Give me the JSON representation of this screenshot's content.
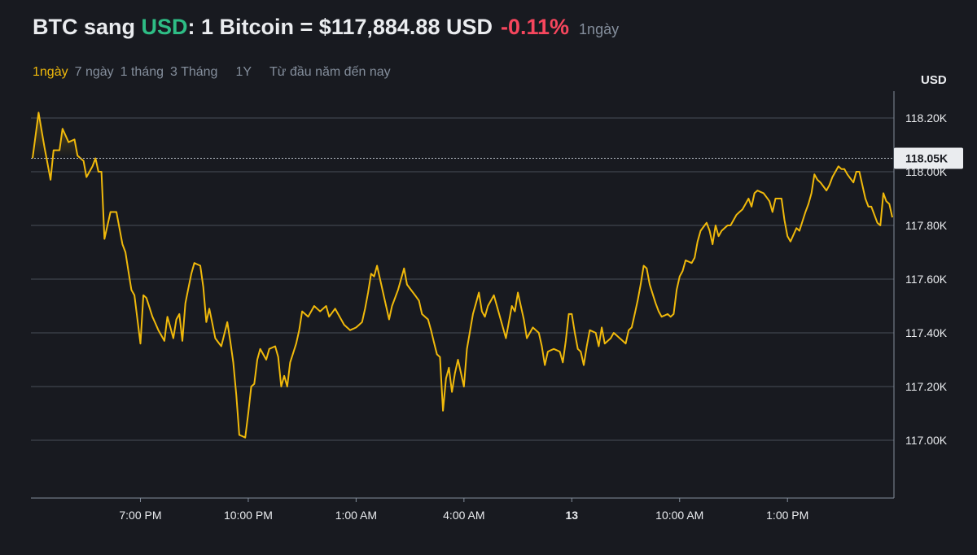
{
  "header": {
    "base": "BTC sang ",
    "quote": "USD",
    "rest": ": 1 Bitcoin = $117,884.88 USD",
    "change": "-0.11%",
    "period": "1ngày"
  },
  "tabs": [
    {
      "label": "1ngày",
      "active": true
    },
    {
      "label": "7 ngày",
      "active": false
    },
    {
      "label": "1 tháng",
      "active": false
    },
    {
      "label": "3 Tháng",
      "active": false
    },
    {
      "label": "1Y",
      "active": false
    },
    {
      "label": "Từ đầu năm đến nay",
      "active": false
    }
  ],
  "colors": {
    "background": "#181a20",
    "line": "#f0b90b",
    "up": "#2ebd85",
    "down": "#f6465d",
    "grid": "#474d57",
    "muted": "#848e9c"
  },
  "chart_data": {
    "type": "line",
    "currency_label": "USD",
    "current_price_label": "118.05K",
    "current_price": 118050,
    "ylim": [
      116800,
      118300
    ],
    "y_ticks": [
      {
        "value": 118200,
        "label": "118.20K"
      },
      {
        "value": 118000,
        "label": "118.00K"
      },
      {
        "value": 117800,
        "label": "117.80K"
      },
      {
        "value": 117600,
        "label": "117.60K"
      },
      {
        "value": 117400,
        "label": "117.40K"
      },
      {
        "value": 117200,
        "label": "117.20K"
      },
      {
        "value": 117000,
        "label": "117.00K"
      }
    ],
    "x_ticks": [
      {
        "index": 36,
        "label": "7:00 PM",
        "bold": false
      },
      {
        "index": 72,
        "label": "10:00 PM",
        "bold": false
      },
      {
        "index": 108,
        "label": "1:00 AM",
        "bold": false
      },
      {
        "index": 144,
        "label": "4:00 AM",
        "bold": false
      },
      {
        "index": 180,
        "label": "13",
        "bold": true
      },
      {
        "index": 216,
        "label": "10:00 AM",
        "bold": false
      },
      {
        "index": 252,
        "label": "1:00 PM",
        "bold": false
      }
    ],
    "n_points": 288,
    "anchors": [
      [
        0,
        118050
      ],
      [
        2,
        118220
      ],
      [
        4,
        118090
      ],
      [
        6,
        117970
      ],
      [
        7,
        118080
      ],
      [
        9,
        118080
      ],
      [
        10,
        118160
      ],
      [
        12,
        118110
      ],
      [
        14,
        118120
      ],
      [
        15,
        118060
      ],
      [
        17,
        118040
      ],
      [
        18,
        117980
      ],
      [
        20,
        118020
      ],
      [
        21,
        118050
      ],
      [
        22,
        118000
      ],
      [
        23,
        118000
      ],
      [
        24,
        117750
      ],
      [
        26,
        117850
      ],
      [
        28,
        117850
      ],
      [
        30,
        117730
      ],
      [
        31,
        117700
      ],
      [
        33,
        117560
      ],
      [
        34,
        117540
      ],
      [
        36,
        117360
      ],
      [
        37,
        117540
      ],
      [
        38,
        117530
      ],
      [
        40,
        117460
      ],
      [
        42,
        117410
      ],
      [
        44,
        117370
      ],
      [
        45,
        117460
      ],
      [
        47,
        117380
      ],
      [
        48,
        117450
      ],
      [
        49,
        117470
      ],
      [
        50,
        117370
      ],
      [
        51,
        117510
      ],
      [
        53,
        117620
      ],
      [
        54,
        117660
      ],
      [
        56,
        117650
      ],
      [
        57,
        117570
      ],
      [
        58,
        117440
      ],
      [
        59,
        117490
      ],
      [
        61,
        117380
      ],
      [
        63,
        117350
      ],
      [
        65,
        117440
      ],
      [
        66,
        117370
      ],
      [
        67,
        117290
      ],
      [
        68,
        117170
      ],
      [
        69,
        117020
      ],
      [
        71,
        117010
      ],
      [
        72,
        117100
      ],
      [
        73,
        117200
      ],
      [
        74,
        117210
      ],
      [
        75,
        117300
      ],
      [
        76,
        117340
      ],
      [
        78,
        117300
      ],
      [
        79,
        117340
      ],
      [
        81,
        117350
      ],
      [
        82,
        117310
      ],
      [
        83,
        117200
      ],
      [
        84,
        117240
      ],
      [
        85,
        117200
      ],
      [
        86,
        117290
      ],
      [
        88,
        117360
      ],
      [
        89,
        117410
      ],
      [
        90,
        117480
      ],
      [
        92,
        117460
      ],
      [
        94,
        117500
      ],
      [
        96,
        117480
      ],
      [
        98,
        117500
      ],
      [
        99,
        117460
      ],
      [
        101,
        117490
      ],
      [
        103,
        117450
      ],
      [
        104,
        117430
      ],
      [
        106,
        117410
      ],
      [
        108,
        117420
      ],
      [
        110,
        117440
      ],
      [
        111,
        117490
      ],
      [
        112,
        117550
      ],
      [
        113,
        117620
      ],
      [
        114,
        117610
      ],
      [
        115,
        117650
      ],
      [
        116,
        117600
      ],
      [
        118,
        117500
      ],
      [
        119,
        117450
      ],
      [
        120,
        117500
      ],
      [
        122,
        117560
      ],
      [
        124,
        117640
      ],
      [
        125,
        117580
      ],
      [
        127,
        117550
      ],
      [
        129,
        117520
      ],
      [
        130,
        117470
      ],
      [
        132,
        117450
      ],
      [
        133,
        117410
      ],
      [
        135,
        117320
      ],
      [
        136,
        117310
      ],
      [
        137,
        117110
      ],
      [
        138,
        117230
      ],
      [
        139,
        117270
      ],
      [
        140,
        117180
      ],
      [
        141,
        117250
      ],
      [
        142,
        117300
      ],
      [
        144,
        117200
      ],
      [
        145,
        117340
      ],
      [
        147,
        117470
      ],
      [
        149,
        117550
      ],
      [
        150,
        117480
      ],
      [
        151,
        117460
      ],
      [
        152,
        117500
      ],
      [
        154,
        117540
      ],
      [
        156,
        117460
      ],
      [
        158,
        117380
      ],
      [
        160,
        117500
      ],
      [
        161,
        117480
      ],
      [
        162,
        117550
      ],
      [
        164,
        117450
      ],
      [
        165,
        117380
      ],
      [
        167,
        117420
      ],
      [
        169,
        117400
      ],
      [
        170,
        117350
      ],
      [
        171,
        117280
      ],
      [
        172,
        117330
      ],
      [
        174,
        117340
      ],
      [
        176,
        117330
      ],
      [
        177,
        117290
      ],
      [
        178,
        117370
      ],
      [
        179,
        117470
      ],
      [
        180,
        117470
      ],
      [
        181,
        117400
      ],
      [
        182,
        117340
      ],
      [
        183,
        117330
      ],
      [
        184,
        117280
      ],
      [
        185,
        117350
      ],
      [
        186,
        117410
      ],
      [
        188,
        117400
      ],
      [
        189,
        117350
      ],
      [
        190,
        117420
      ],
      [
        191,
        117360
      ],
      [
        193,
        117380
      ],
      [
        194,
        117400
      ],
      [
        196,
        117380
      ],
      [
        198,
        117360
      ],
      [
        199,
        117410
      ],
      [
        200,
        117420
      ],
      [
        202,
        117520
      ],
      [
        203,
        117580
      ],
      [
        204,
        117650
      ],
      [
        205,
        117640
      ],
      [
        206,
        117580
      ],
      [
        208,
        117510
      ],
      [
        209,
        117480
      ],
      [
        210,
        117460
      ],
      [
        212,
        117470
      ],
      [
        213,
        117460
      ],
      [
        214,
        117470
      ],
      [
        215,
        117560
      ],
      [
        216,
        117610
      ],
      [
        217,
        117630
      ],
      [
        218,
        117670
      ],
      [
        220,
        117660
      ],
      [
        221,
        117680
      ],
      [
        222,
        117740
      ],
      [
        223,
        117780
      ],
      [
        225,
        117810
      ],
      [
        226,
        117780
      ],
      [
        227,
        117730
      ],
      [
        228,
        117800
      ],
      [
        229,
        117760
      ],
      [
        230,
        117780
      ],
      [
        232,
        117800
      ],
      [
        233,
        117800
      ],
      [
        235,
        117840
      ],
      [
        236,
        117850
      ],
      [
        237,
        117860
      ],
      [
        238,
        117880
      ],
      [
        239,
        117900
      ],
      [
        240,
        117870
      ],
      [
        241,
        117920
      ],
      [
        242,
        117930
      ],
      [
        244,
        117920
      ],
      [
        246,
        117890
      ],
      [
        247,
        117850
      ],
      [
        248,
        117900
      ],
      [
        250,
        117900
      ],
      [
        251,
        117820
      ],
      [
        252,
        117760
      ],
      [
        253,
        117740
      ],
      [
        255,
        117790
      ],
      [
        256,
        117780
      ],
      [
        258,
        117850
      ],
      [
        259,
        117880
      ],
      [
        260,
        117920
      ],
      [
        261,
        117990
      ],
      [
        262,
        117970
      ],
      [
        263,
        117960
      ],
      [
        265,
        117930
      ],
      [
        266,
        117950
      ],
      [
        267,
        117980
      ],
      [
        269,
        118020
      ],
      [
        270,
        118010
      ],
      [
        271,
        118010
      ],
      [
        272,
        117990
      ],
      [
        274,
        117960
      ],
      [
        275,
        118000
      ],
      [
        276,
        118000
      ],
      [
        278,
        117900
      ],
      [
        279,
        117870
      ],
      [
        280,
        117870
      ],
      [
        282,
        117810
      ],
      [
        283,
        117800
      ],
      [
        284,
        117920
      ],
      [
        285,
        117890
      ],
      [
        286,
        117880
      ],
      [
        287,
        117830
      ]
    ]
  }
}
